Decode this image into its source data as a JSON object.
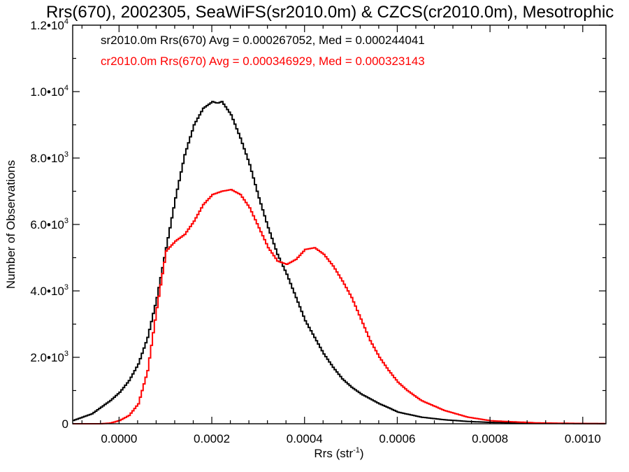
{
  "chart_data": {
    "type": "line",
    "title": "Rrs(670), 2002305, SeaWiFS(sr2010.0m) & CZCS(cr2010.0m), Mesotrophic",
    "xlabel_main": "Rrs (str",
    "xlabel_sup": "-1",
    "xlabel_end": ")",
    "ylabel": "Number of Observations",
    "xlim": [
      -0.0001,
      0.00105
    ],
    "ylim": [
      0,
      12000
    ],
    "x_ticks": [
      {
        "value": 0.0,
        "label": "0.0000"
      },
      {
        "value": 0.0002,
        "label": "0.0002"
      },
      {
        "value": 0.0004,
        "label": "0.0004"
      },
      {
        "value": 0.0006,
        "label": "0.0006"
      },
      {
        "value": 0.0008,
        "label": "0.0008"
      },
      {
        "value": 0.001,
        "label": "0.0010"
      }
    ],
    "y_ticks": [
      {
        "value": 0,
        "mant": "0",
        "exp": ""
      },
      {
        "value": 2000,
        "mant": "2.0•10",
        "exp": "3"
      },
      {
        "value": 4000,
        "mant": "4.0•10",
        "exp": "3"
      },
      {
        "value": 6000,
        "mant": "6.0•10",
        "exp": "3"
      },
      {
        "value": 8000,
        "mant": "8.0•10",
        "exp": "3"
      },
      {
        "value": 10000,
        "mant": "1.0•10",
        "exp": "4"
      },
      {
        "value": 12000,
        "mant": "1.2•10",
        "exp": "4"
      }
    ],
    "annotations": [
      {
        "text": "sr2010.0m Rrs(670) Avg = 0.000267052, Med = 0.000244041",
        "color": "#000000"
      },
      {
        "text": "cr2010.0m Rrs(670) Avg = 0.000346929, Med = 0.000323143",
        "color": "#ff0000"
      }
    ],
    "series": [
      {
        "color": "#000000",
        "x": [
          -0.0001,
          -8e-05,
          -6e-05,
          -4e-05,
          -2e-05,
          0.0,
          2e-05,
          4e-05,
          6e-05,
          8e-05,
          0.0001,
          0.00012,
          0.00014,
          0.00016,
          0.00018,
          0.0002,
          0.00021,
          0.00022,
          0.00023,
          0.00024,
          0.00026,
          0.00028,
          0.0003,
          0.00032,
          0.00034,
          0.00036,
          0.00038,
          0.0004,
          0.00042,
          0.00044,
          0.00046,
          0.00048,
          0.0005,
          0.00052,
          0.00054,
          0.00056,
          0.00058,
          0.0006,
          0.00065,
          0.0007,
          0.00075,
          0.0008,
          0.0009,
          0.001,
          0.00105
        ],
        "y": [
          100,
          200,
          300,
          500,
          700,
          950,
          1300,
          1800,
          2600,
          3800,
          5300,
          6800,
          8100,
          9000,
          9500,
          9700,
          9650,
          9700,
          9500,
          9300,
          8600,
          7800,
          6800,
          5900,
          5100,
          4500,
          3800,
          3100,
          2600,
          2100,
          1700,
          1350,
          1100,
          900,
          750,
          600,
          480,
          350,
          200,
          120,
          70,
          40,
          15,
          5,
          2
        ]
      },
      {
        "color": "#ff0000",
        "x": [
          -0.0001,
          -4e-05,
          -2e-05,
          0.0,
          2e-05,
          4e-05,
          6e-05,
          8e-05,
          0.0001,
          0.00012,
          0.00014,
          0.00016,
          0.00018,
          0.0002,
          0.00022,
          0.00024,
          0.00026,
          0.00028,
          0.0003,
          0.00032,
          0.00034,
          0.00036,
          0.00038,
          0.0004,
          0.00042,
          0.00044,
          0.00046,
          0.00048,
          0.0005,
          0.00052,
          0.00054,
          0.00056,
          0.00058,
          0.0006,
          0.00062,
          0.00065,
          0.0007,
          0.00075,
          0.0008,
          0.0009,
          0.001,
          0.00105
        ],
        "y": [
          0,
          0,
          20,
          100,
          250,
          600,
          1600,
          3500,
          5200,
          5500,
          5700,
          6100,
          6600,
          6900,
          7000,
          7050,
          6900,
          6500,
          5900,
          5300,
          4900,
          4800,
          4950,
          5250,
          5300,
          5100,
          4750,
          4300,
          3800,
          3150,
          2500,
          2000,
          1600,
          1250,
          1000,
          700,
          400,
          200,
          90,
          25,
          8,
          3
        ]
      }
    ]
  }
}
